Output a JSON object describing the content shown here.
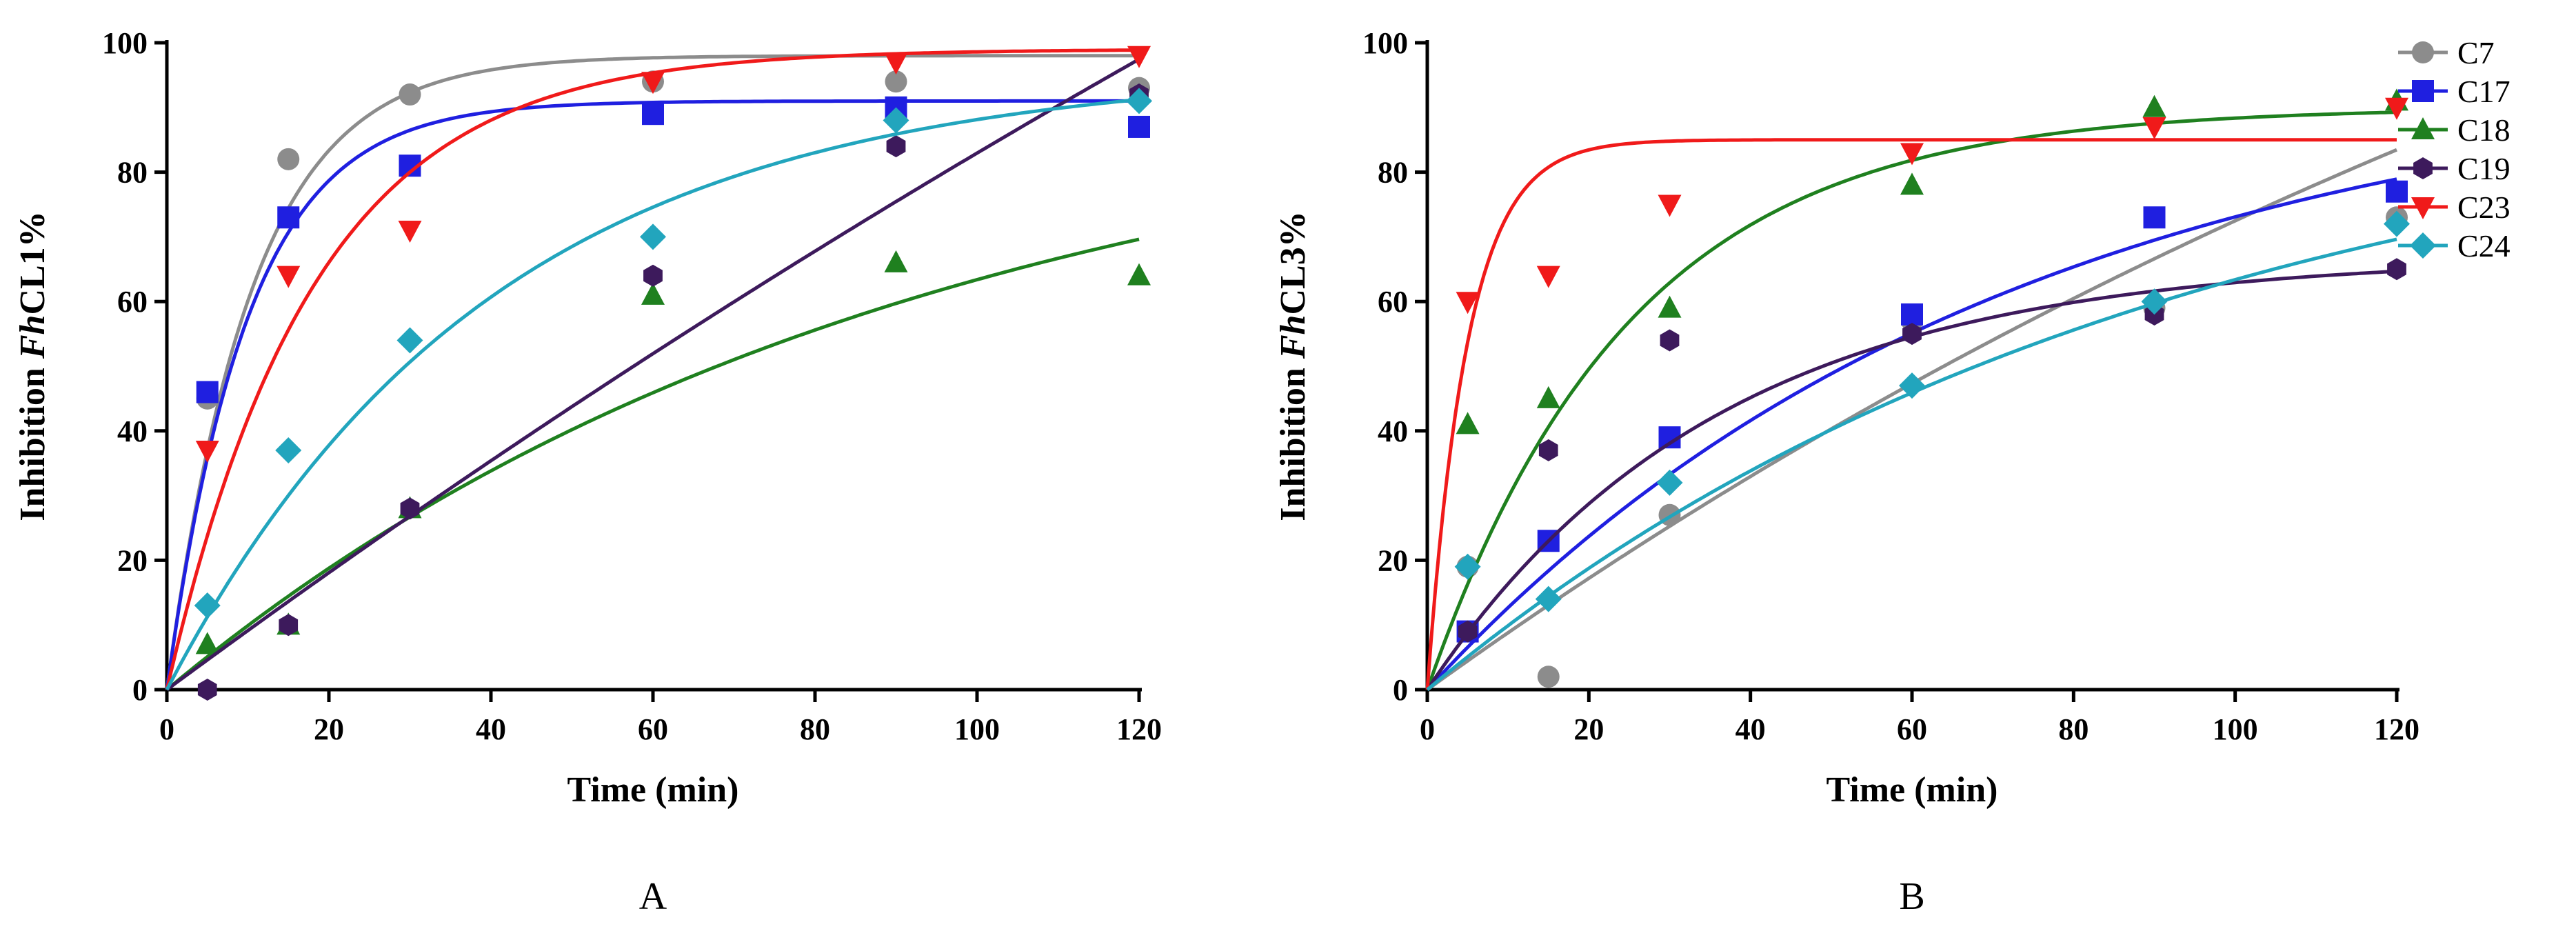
{
  "series_styles": [
    {
      "name": "C7",
      "color": "#8c8c8c",
      "marker": "circle"
    },
    {
      "name": "C17",
      "color": "#1f1fe0",
      "marker": "square"
    },
    {
      "name": "C18",
      "color": "#1f801f",
      "marker": "triangle-up"
    },
    {
      "name": "C19",
      "color": "#3d1a5c",
      "marker": "hexagon"
    },
    {
      "name": "C23",
      "color": "#f01a1a",
      "marker": "triangle-down"
    },
    {
      "name": "C24",
      "color": "#22a5bd",
      "marker": "diamond"
    }
  ],
  "chart_data": [
    {
      "type": "scatter",
      "panel_label": "A",
      "xlabel": "Time (min)",
      "ylabel_prefix": "Inhibition ",
      "ylabel_italic": "Fh",
      "ylabel_suffix": "CL1%",
      "xlim": [
        0,
        120
      ],
      "ylim": [
        0,
        100
      ],
      "xticks": [
        0,
        20,
        40,
        60,
        80,
        100,
        120
      ],
      "yticks": [
        0,
        20,
        40,
        60,
        80,
        100
      ],
      "legend": false,
      "x": [
        5,
        15,
        30,
        60,
        90,
        120
      ],
      "series": [
        {
          "name": "C7",
          "values": [
            45,
            82,
            92,
            94,
            94,
            93
          ],
          "fit": {
            "ymax": 98,
            "k": 0.095
          }
        },
        {
          "name": "C17",
          "values": [
            46,
            73,
            81,
            89,
            90,
            87
          ],
          "fit": {
            "ymax": 91,
            "k": 0.1
          }
        },
        {
          "name": "C18",
          "values": [
            7,
            10,
            28,
            61,
            66,
            64
          ],
          "fit": {
            "ymax": 95,
            "k": 0.011
          }
        },
        {
          "name": "C19",
          "values": [
            0,
            10,
            28,
            64,
            84,
            92
          ],
          "fit": {
            "ymax": 420,
            "k": 0.0022
          }
        },
        {
          "name": "C23",
          "values": [
            37,
            64,
            71,
            94,
            97,
            98
          ],
          "fit": {
            "ymax": 99,
            "k": 0.055
          }
        },
        {
          "name": "C24",
          "values": [
            13,
            37,
            54,
            70,
            88,
            91
          ],
          "fit": {
            "ymax": 96,
            "k": 0.025
          }
        }
      ]
    },
    {
      "type": "scatter",
      "panel_label": "B",
      "xlabel": "Time (min)",
      "ylabel_prefix": "Inhibition ",
      "ylabel_italic": "Fh",
      "ylabel_suffix": "CL3%",
      "xlim": [
        0,
        120
      ],
      "ylim": [
        0,
        100
      ],
      "xticks": [
        0,
        20,
        40,
        60,
        80,
        100,
        120
      ],
      "yticks": [
        0,
        20,
        40,
        60,
        80,
        100
      ],
      "legend": true,
      "legend_position": "top-right",
      "x": [
        5,
        15,
        30,
        60,
        90,
        120
      ],
      "series": [
        {
          "name": "C7",
          "values": [
            19,
            2,
            27,
            57,
            59,
            73
          ],
          "fit": {
            "ymax": 200,
            "k": 0.0045
          }
        },
        {
          "name": "C17",
          "values": [
            9,
            23,
            39,
            58,
            73,
            77
          ],
          "fit": {
            "ymax": 97,
            "k": 0.014
          }
        },
        {
          "name": "C18",
          "values": [
            41,
            45,
            59,
            78,
            90,
            91
          ],
          "fit": {
            "ymax": 90,
            "k": 0.04
          }
        },
        {
          "name": "C19",
          "values": [
            9,
            37,
            54,
            55,
            58,
            65
          ],
          "fit": {
            "ymax": 67,
            "k": 0.028
          }
        },
        {
          "name": "C23",
          "values": [
            60,
            64,
            75,
            83,
            87,
            90
          ],
          "fit": {
            "ymax": 85,
            "k": 0.2
          }
        },
        {
          "name": "C24",
          "values": [
            19,
            14,
            32,
            47,
            60,
            72
          ],
          "fit": {
            "ymax": 95,
            "k": 0.011
          }
        }
      ]
    }
  ]
}
